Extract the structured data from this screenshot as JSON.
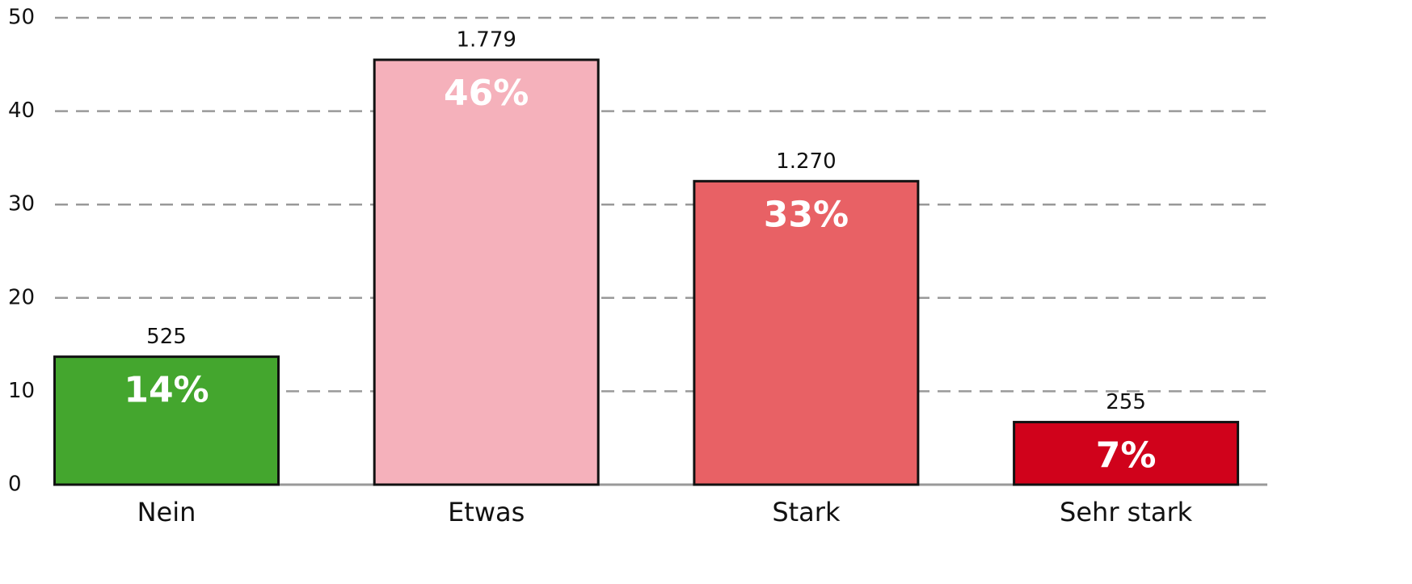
{
  "chart_data": {
    "type": "bar",
    "categories": [
      "Nein",
      "Etwas",
      "Stark",
      "Sehr stark"
    ],
    "values": [
      13.7,
      45.5,
      32.5,
      6.7
    ],
    "value_labels": [
      "14%",
      "46%",
      "33%",
      "7%"
    ],
    "counts": [
      525,
      1779,
      1270,
      255
    ],
    "count_labels": [
      "525",
      "1.779",
      "1.270",
      "255"
    ],
    "colors": [
      "#44a62e",
      "#f5b1bb",
      "#e86165",
      "#d0021b"
    ],
    "ylim": [
      0,
      50
    ],
    "yticks": [
      0,
      10,
      20,
      30,
      40,
      50
    ],
    "grid": true
  }
}
